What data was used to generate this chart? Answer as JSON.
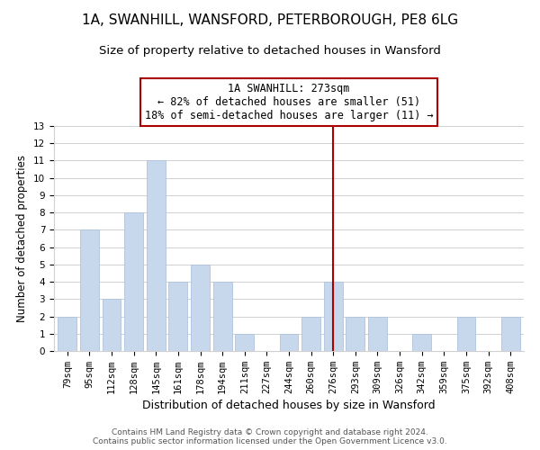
{
  "title": "1A, SWANHILL, WANSFORD, PETERBOROUGH, PE8 6LG",
  "subtitle": "Size of property relative to detached houses in Wansford",
  "xlabel": "Distribution of detached houses by size in Wansford",
  "ylabel": "Number of detached properties",
  "categories": [
    "79sqm",
    "95sqm",
    "112sqm",
    "128sqm",
    "145sqm",
    "161sqm",
    "178sqm",
    "194sqm",
    "211sqm",
    "227sqm",
    "244sqm",
    "260sqm",
    "276sqm",
    "293sqm",
    "309sqm",
    "326sqm",
    "342sqm",
    "359sqm",
    "375sqm",
    "392sqm",
    "408sqm"
  ],
  "values": [
    2,
    7,
    3,
    8,
    11,
    4,
    5,
    4,
    1,
    0,
    1,
    2,
    4,
    2,
    2,
    0,
    1,
    0,
    2,
    0,
    2
  ],
  "bar_color": "#c8d8ec",
  "bar_edge_color": "#b0c4de",
  "vline_x_index": 12,
  "vline_color": "#aa0000",
  "annotation_title": "1A SWANHILL: 273sqm",
  "annotation_line1": "← 82% of detached houses are smaller (51)",
  "annotation_line2": "18% of semi-detached houses are larger (11) →",
  "annotation_box_color": "#ffffff",
  "annotation_box_edge": "#aa0000",
  "ylim": [
    0,
    13
  ],
  "yticks": [
    0,
    1,
    2,
    3,
    4,
    5,
    6,
    7,
    8,
    9,
    10,
    11,
    12,
    13
  ],
  "grid_color": "#d0d0d0",
  "background_color": "#ffffff",
  "footer_line1": "Contains HM Land Registry data © Crown copyright and database right 2024.",
  "footer_line2": "Contains public sector information licensed under the Open Government Licence v3.0.",
  "title_fontsize": 11,
  "subtitle_fontsize": 9.5,
  "xlabel_fontsize": 9,
  "ylabel_fontsize": 8.5,
  "tick_fontsize": 7.5,
  "annotation_fontsize": 8.5,
  "footer_fontsize": 6.5
}
